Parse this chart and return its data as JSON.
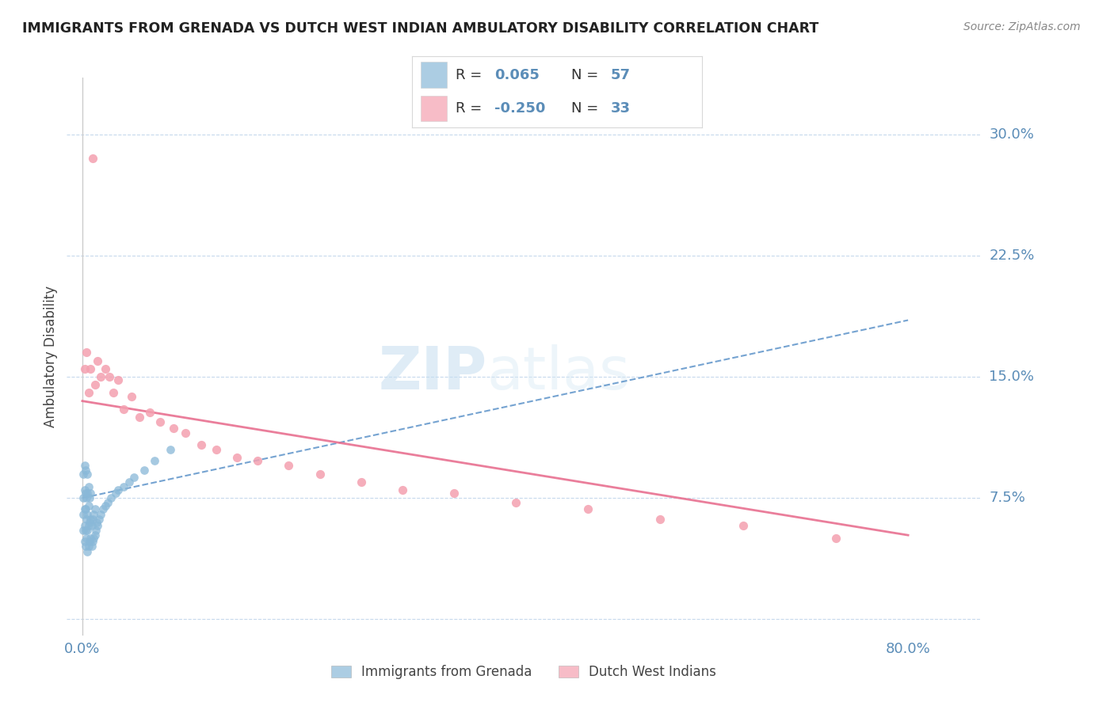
{
  "title": "IMMIGRANTS FROM GRENADA VS DUTCH WEST INDIAN AMBULATORY DISABILITY CORRELATION CHART",
  "source": "Source: ZipAtlas.com",
  "ylabel": "Ambulatory Disability",
  "xlim": [
    -0.015,
    0.87
  ],
  "ylim": [
    -0.01,
    0.335
  ],
  "y_ticks": [
    0.0,
    0.075,
    0.15,
    0.225,
    0.3
  ],
  "y_tick_labels": [
    "",
    "7.5%",
    "15.0%",
    "22.5%",
    "30.0%"
  ],
  "x_tick_labels": [
    "0.0%",
    "80.0%"
  ],
  "legend_labels": [
    "Immigrants from Grenada",
    "Dutch West Indians"
  ],
  "blue_color": "#89b8d8",
  "pink_color": "#f4a0b0",
  "blue_line_color": "#6699cc",
  "pink_line_color": "#e87090",
  "watermark_zip": "ZIP",
  "watermark_atlas": "atlas",
  "blue_scatter_x": [
    0.001,
    0.001,
    0.001,
    0.001,
    0.002,
    0.002,
    0.002,
    0.002,
    0.002,
    0.003,
    0.003,
    0.003,
    0.003,
    0.003,
    0.004,
    0.004,
    0.004,
    0.005,
    0.005,
    0.005,
    0.005,
    0.005,
    0.006,
    0.006,
    0.006,
    0.006,
    0.007,
    0.007,
    0.007,
    0.008,
    0.008,
    0.008,
    0.009,
    0.009,
    0.01,
    0.01,
    0.011,
    0.011,
    0.012,
    0.012,
    0.013,
    0.014,
    0.015,
    0.016,
    0.018,
    0.02,
    0.022,
    0.025,
    0.028,
    0.032,
    0.035,
    0.04,
    0.045,
    0.05,
    0.06,
    0.07,
    0.085
  ],
  "blue_scatter_y": [
    0.055,
    0.065,
    0.075,
    0.09,
    0.048,
    0.058,
    0.068,
    0.08,
    0.095,
    0.045,
    0.055,
    0.068,
    0.078,
    0.092,
    0.05,
    0.062,
    0.075,
    0.042,
    0.055,
    0.065,
    0.078,
    0.09,
    0.045,
    0.058,
    0.07,
    0.082,
    0.048,
    0.06,
    0.075,
    0.05,
    0.062,
    0.078,
    0.045,
    0.058,
    0.048,
    0.062,
    0.05,
    0.065,
    0.052,
    0.068,
    0.055,
    0.06,
    0.058,
    0.062,
    0.065,
    0.068,
    0.07,
    0.072,
    0.075,
    0.078,
    0.08,
    0.082,
    0.085,
    0.088,
    0.092,
    0.098,
    0.105
  ],
  "pink_scatter_x": [
    0.002,
    0.004,
    0.006,
    0.008,
    0.01,
    0.012,
    0.015,
    0.018,
    0.022,
    0.026,
    0.03,
    0.035,
    0.04,
    0.048,
    0.055,
    0.065,
    0.075,
    0.088,
    0.1,
    0.115,
    0.13,
    0.15,
    0.17,
    0.2,
    0.23,
    0.27,
    0.31,
    0.36,
    0.42,
    0.49,
    0.56,
    0.64,
    0.73
  ],
  "pink_scatter_y": [
    0.155,
    0.165,
    0.14,
    0.155,
    0.285,
    0.145,
    0.16,
    0.15,
    0.155,
    0.15,
    0.14,
    0.148,
    0.13,
    0.138,
    0.125,
    0.128,
    0.122,
    0.118,
    0.115,
    0.108,
    0.105,
    0.1,
    0.098,
    0.095,
    0.09,
    0.085,
    0.08,
    0.078,
    0.072,
    0.068,
    0.062,
    0.058,
    0.05
  ],
  "blue_line_x0": 0.0,
  "blue_line_x1": 0.8,
  "blue_line_y0": 0.075,
  "blue_line_y1": 0.185,
  "pink_line_x0": 0.0,
  "pink_line_x1": 0.8,
  "pink_line_y0": 0.135,
  "pink_line_y1": 0.052
}
